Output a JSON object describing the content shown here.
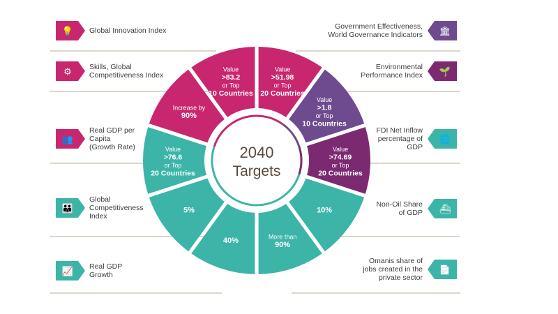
{
  "center": {
    "line1": "2040",
    "line2": "Targets"
  },
  "colors": {
    "magenta": "#c8276f",
    "purple": "#6e4a8e",
    "purple_dark": "#7b2a72",
    "teal": "#3cb5a8",
    "text": "#3d3d3d",
    "center_text": "#5b4a3a"
  },
  "indicators": [
    {
      "side": "left",
      "icon": "lightbulb-icon",
      "color": "#c8276f",
      "lines": [
        "Global Innovation Index"
      ]
    },
    {
      "side": "left",
      "icon": "skills-icon",
      "color": "#c8276f",
      "lines": [
        "Skills, Global",
        "Competitiveness Index"
      ]
    },
    {
      "side": "left",
      "icon": "people-chart-icon",
      "color": "#c8276f",
      "lines": [
        "Real GDP per",
        "Capita",
        "(Growth Rate)"
      ]
    },
    {
      "side": "left",
      "icon": "people-icon",
      "color": "#3cb5a8",
      "lines": [
        "Global",
        "Competitiveness",
        "Index"
      ]
    },
    {
      "side": "left",
      "icon": "bar-chart-icon",
      "color": "#3cb5a8",
      "lines": [
        "Real GDP",
        "Growth"
      ]
    },
    {
      "side": "right",
      "icon": "government-icon",
      "color": "#6e4a8e",
      "lines": [
        "Government Effectiveness,",
        "World Governance Indicators"
      ]
    },
    {
      "side": "right",
      "icon": "plant-icon",
      "color": "#7b2a72",
      "lines": [
        "Environmental",
        "Performance Index"
      ]
    },
    {
      "side": "right",
      "icon": "globe-icon",
      "color": "#3cb5a8",
      "lines": [
        "FDI Net Inflow",
        "percentage of",
        "GDP"
      ]
    },
    {
      "side": "right",
      "icon": "ship-icon",
      "color": "#3cb5a8",
      "lines": [
        "Non-Oil Share",
        "of GDP"
      ]
    },
    {
      "side": "right",
      "icon": "document-icon",
      "color": "#3cb5a8",
      "lines": [
        "Omanis share of",
        "jobs created in the",
        "private sector"
      ]
    }
  ],
  "segments": [
    {
      "name": "global-innovation-target",
      "color": "#c8276f",
      "lines": [
        "Value",
        ">51.98",
        "or Top",
        "20 Countries"
      ]
    },
    {
      "name": "government-effectiveness-target",
      "color": "#6e4a8e",
      "lines": [
        "Value",
        ">1.8",
        "or Top",
        "10 Countries"
      ]
    },
    {
      "name": "environmental-target",
      "color": "#7b2a72",
      "lines": [
        "Value",
        ">74.69",
        "or Top",
        "20 Countries"
      ]
    },
    {
      "name": "fdi-target",
      "color": "#3cb5a8",
      "lines": [
        "10%"
      ]
    },
    {
      "name": "non-oil-target",
      "color": "#3cb5a8",
      "lines": [
        "More than",
        "90%"
      ]
    },
    {
      "name": "omanis-jobs-target",
      "color": "#3cb5a8",
      "lines": [
        "40%"
      ]
    },
    {
      "name": "real-gdp-growth-target",
      "color": "#3cb5a8",
      "lines": [
        "5%"
      ]
    },
    {
      "name": "competitiveness-target",
      "color": "#3cb5a8",
      "lines": [
        "Value",
        ">76.6",
        "or Top",
        "20 Countries"
      ]
    },
    {
      "name": "gdp-per-capita-target",
      "color": "#c8276f",
      "lines": [
        "Increase by",
        "90%"
      ]
    },
    {
      "name": "skills-target",
      "color": "#c8276f",
      "lines": [
        "Value",
        ">83.2",
        "or Top",
        "10 Countries"
      ]
    }
  ]
}
